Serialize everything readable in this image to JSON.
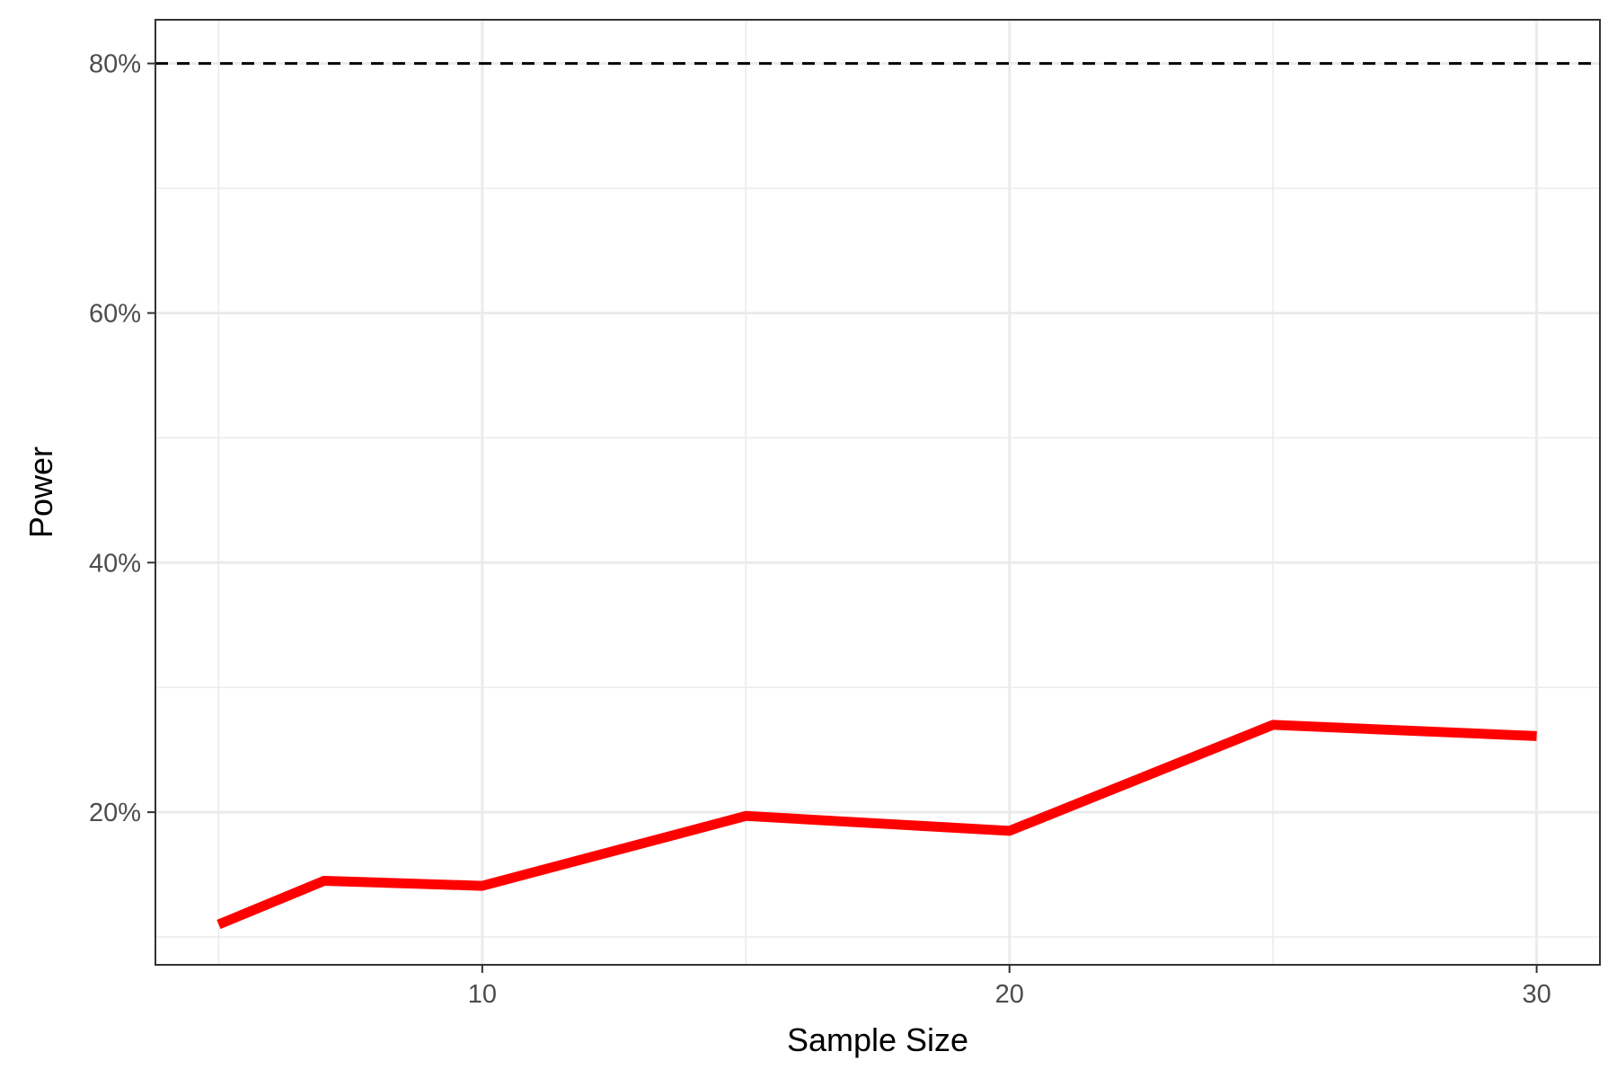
{
  "chart_data": {
    "type": "line",
    "xlabel": "Sample Size",
    "ylabel": "Power",
    "xlim": [
      3.8,
      31.2
    ],
    "ylim": [
      0.0777,
      0.835
    ],
    "x_ticks": [
      10,
      20,
      30
    ],
    "x_tick_labels": [
      "10",
      "20",
      "30"
    ],
    "x_minor_ticks": [
      5,
      15,
      25
    ],
    "y_ticks": [
      0.2,
      0.4,
      0.6,
      0.8
    ],
    "y_tick_labels": [
      "20%",
      "40%",
      "60%",
      "80%"
    ],
    "y_minor_ticks": [
      0.1,
      0.3,
      0.5,
      0.7
    ],
    "grid": true,
    "reference_line": {
      "y": 0.8,
      "style": "dashed",
      "color": "#000000"
    },
    "series": [
      {
        "color": "#ff0000",
        "x": [
          5,
          7,
          10,
          15,
          20,
          25,
          30
        ],
        "y": [
          0.11,
          0.145,
          0.141,
          0.197,
          0.185,
          0.27,
          0.261
        ]
      }
    ]
  }
}
